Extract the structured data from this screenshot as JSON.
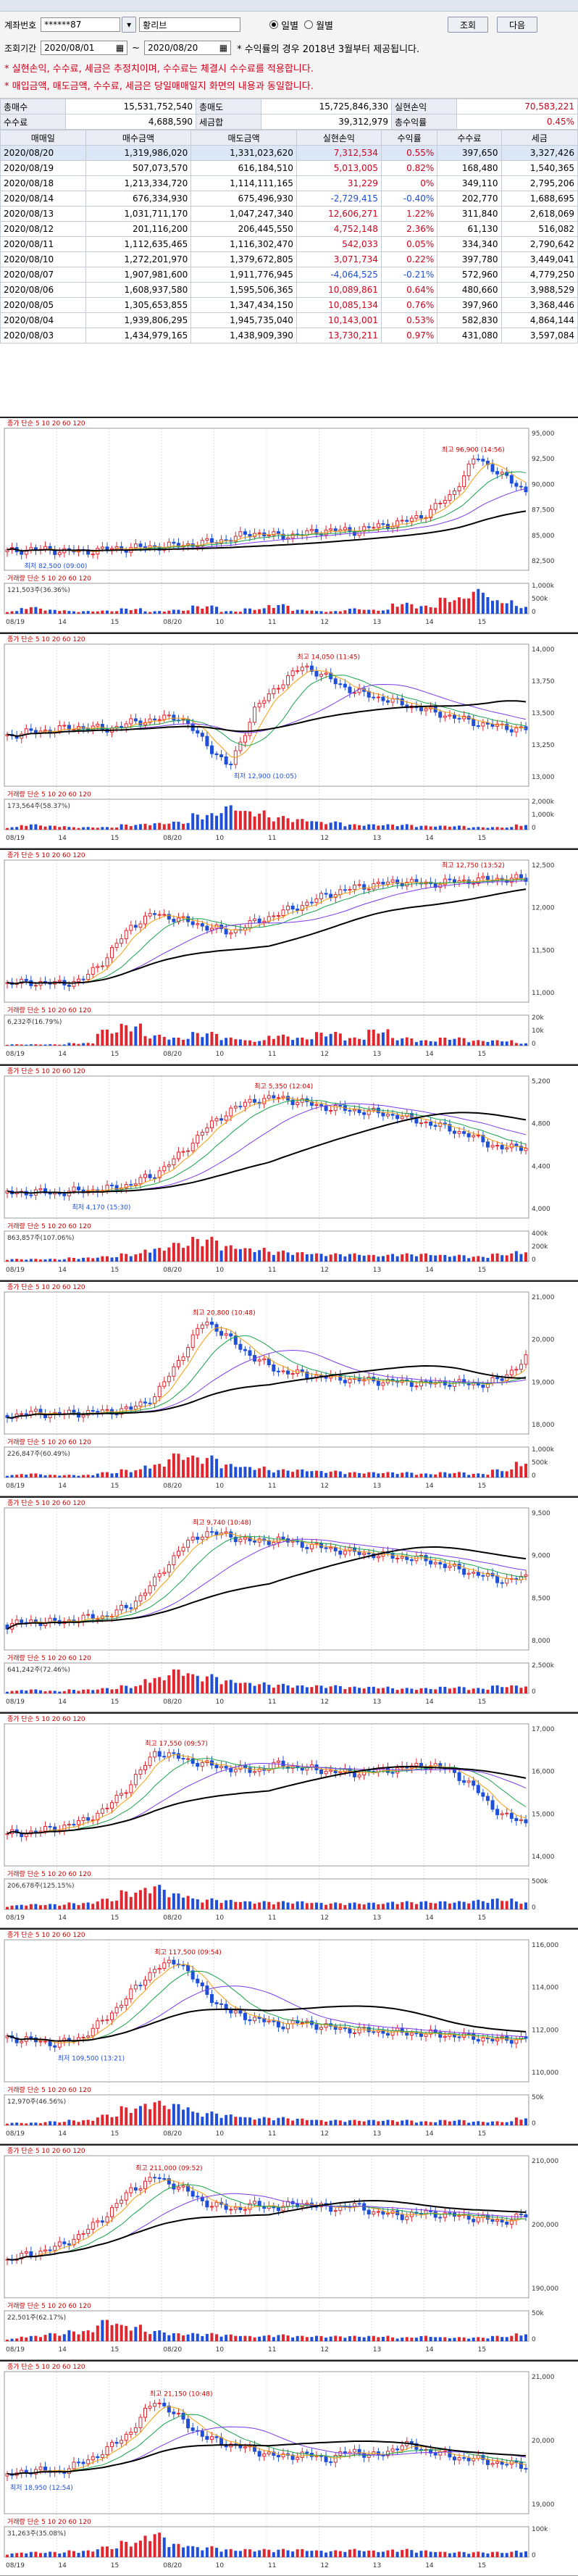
{
  "form": {
    "account_label": "계좌번호",
    "account_value": "******87",
    "account_name": "황리브",
    "period_label": "조회기간",
    "date_from": "2020/08/01",
    "date_to": "2020/08/20",
    "period_note": "* 수익률의 경우 2018년 3월부터 제공됩니다.",
    "radio_daily": "일별",
    "radio_monthly": "월별",
    "search_button": "조회",
    "next_button": "다음",
    "notice1": "* 실현손익, 수수료, 세금은 추정치이며, 수수료는 체결시 수수료를 적용합니다.",
    "notice2": "* 매입금액, 매도금액, 수수료, 세금은 당일매매일지 화면의 내용과 동일합니다."
  },
  "summary": {
    "total_buy_label": "총매수",
    "total_buy": "15,531,752,540",
    "total_sell_label": "총매도",
    "total_sell": "15,725,846,330",
    "realized_label": "실현손익",
    "realized": "70,583,221",
    "fee_label": "수수료",
    "fee": "4,688,590",
    "tax_label": "세금합",
    "tax": "39,312,979",
    "rate_label": "총수익률",
    "rate": "0.45%"
  },
  "table": {
    "headers": [
      "매매일",
      "매수금액",
      "매도금액",
      "실현손익",
      "수익률",
      "수수료",
      "세금"
    ],
    "rows": [
      [
        "2020/08/20",
        "1,319,986,020",
        "1,331,023,620",
        "7,312,534",
        "0.55%",
        "397,650",
        "3,327,426",
        "r"
      ],
      [
        "2020/08/19",
        "507,073,570",
        "616,184,510",
        "5,013,005",
        "0.82%",
        "168,480",
        "1,540,365",
        "r"
      ],
      [
        "2020/08/18",
        "1,213,334,720",
        "1,114,111,165",
        "31,229",
        "0%",
        "349,110",
        "2,795,206",
        "r"
      ],
      [
        "2020/08/14",
        "676,334,930",
        "675,496,930",
        "-2,729,415",
        "-0.40%",
        "202,770",
        "1,688,695",
        "b"
      ],
      [
        "2020/08/13",
        "1,031,711,170",
        "1,047,247,340",
        "12,606,271",
        "1.22%",
        "311,840",
        "2,618,069",
        "r"
      ],
      [
        "2020/08/12",
        "201,116,200",
        "206,445,550",
        "4,752,148",
        "2.36%",
        "61,130",
        "516,082",
        "r"
      ],
      [
        "2020/08/11",
        "1,112,635,465",
        "1,116,302,470",
        "542,033",
        "0.05%",
        "334,340",
        "2,790,642",
        "r"
      ],
      [
        "2020/08/10",
        "1,272,201,970",
        "1,379,672,805",
        "3,071,734",
        "0.22%",
        "397,780",
        "3,449,041",
        "r"
      ],
      [
        "2020/08/07",
        "1,907,981,600",
        "1,911,776,945",
        "-4,064,525",
        "-0.21%",
        "572,960",
        "4,779,250",
        "b"
      ],
      [
        "2020/08/06",
        "1,608,937,580",
        "1,595,506,365",
        "10,089,861",
        "0.64%",
        "480,660",
        "3,988,529",
        "r"
      ],
      [
        "2020/08/05",
        "1,305,653,855",
        "1,347,434,150",
        "10,085,134",
        "0.76%",
        "397,960",
        "3,368,446",
        "r"
      ],
      [
        "2020/08/04",
        "1,939,806,295",
        "1,945,735,040",
        "10,143,001",
        "0.53%",
        "582,830",
        "4,864,144",
        "r"
      ],
      [
        "2020/08/03",
        "1,434,979,165",
        "1,438,909,390",
        "13,730,211",
        "0.97%",
        "431,080",
        "3,597,084",
        "r"
      ]
    ]
  },
  "charts": [
    {
      "name": "종목1",
      "caption": "종가 단순 5 10 20 60 120",
      "high": "최고 96,900 (14:56)",
      "low": "최저 82,500 (09:00)",
      "vol_caption": "거래량 단순 5 10 20 60 120",
      "vol_note": "121,503주(36.36%)",
      "times": [
        "08/19",
        "14",
        "15",
        "08/20",
        "10",
        "11",
        "12",
        "13",
        "14",
        "15"
      ],
      "axis": [
        "95,000",
        "92,500",
        "90,000",
        "87,500",
        "85,000",
        "82,500"
      ],
      "vol_axis": [
        "1,000k",
        "500k",
        "0"
      ],
      "profile": [
        0.1,
        0.12,
        0.11,
        0.1,
        0.12,
        0.13,
        0.14,
        0.15,
        0.17,
        0.2,
        0.25,
        0.22,
        0.24,
        0.27,
        0.26,
        0.3,
        0.33,
        0.4,
        0.55,
        0.85,
        0.7,
        0.58
      ],
      "vol": [
        0.1,
        0.25,
        0.15,
        0.1,
        0.12,
        0.2,
        0.1,
        0.15,
        0.3,
        0.1,
        0.2,
        0.35,
        0.15,
        0.1,
        0.2,
        0.15,
        0.4,
        0.3,
        0.6,
        0.9,
        0.5,
        0.3
      ]
    },
    {
      "name": "종목2",
      "caption": "종가 단순 5 10 20 60 120",
      "high": "최고 14,050 (11:45)",
      "low": "최저 12,900 (10:05)",
      "vol_caption": "거래량 단순 5 10 20 60 120",
      "vol_note": "173,564주(58.37%)",
      "times": [
        "08/19",
        "14",
        "15",
        "08/20",
        "10",
        "11",
        "12",
        "13",
        "14",
        "15"
      ],
      "axis": [
        "14,000",
        "13,750",
        "13,500",
        "13,250",
        "13,000"
      ],
      "vol_axis": [
        "2,000k",
        "1,000k",
        "0"
      ],
      "profile": [
        0.35,
        0.38,
        0.4,
        0.42,
        0.4,
        0.45,
        0.48,
        0.5,
        0.3,
        0.1,
        0.55,
        0.75,
        0.9,
        0.8,
        0.7,
        0.65,
        0.6,
        0.55,
        0.5,
        0.45,
        0.42,
        0.4
      ],
      "vol": [
        0.1,
        0.2,
        0.15,
        0.1,
        0.1,
        0.2,
        0.25,
        0.3,
        0.6,
        0.9,
        0.7,
        0.5,
        0.4,
        0.3,
        0.2,
        0.2,
        0.2,
        0.15,
        0.15,
        0.1,
        0.1,
        0.2
      ]
    },
    {
      "name": "종목3",
      "caption": "종가 단순 5 10 20 60 120",
      "high": "최고 12,750 (13:52)",
      "low": "",
      "vol_caption": "거래량 단순 5 10 20 60 120",
      "vol_note": "6,232주(16.79%)",
      "times": [
        "08/19",
        "14",
        "15",
        "08/20",
        "10",
        "11",
        "12",
        "13",
        "14",
        "15"
      ],
      "axis": [
        "12,500",
        "12,000",
        "11,500",
        "11,000"
      ],
      "vol_axis": [
        "20k",
        "10k",
        "0"
      ],
      "profile": [
        0.1,
        0.11,
        0.1,
        0.12,
        0.3,
        0.55,
        0.65,
        0.6,
        0.55,
        0.5,
        0.58,
        0.65,
        0.72,
        0.8,
        0.85,
        0.88,
        0.9,
        0.88,
        0.9,
        0.91,
        0.92,
        0.92
      ],
      "vol": [
        0.05,
        0.05,
        0.05,
        0.1,
        0.6,
        0.8,
        0.4,
        0.3,
        0.5,
        0.3,
        0.2,
        0.4,
        0.3,
        0.5,
        0.3,
        0.6,
        0.3,
        0.2,
        0.3,
        0.2,
        0.2,
        0.1
      ]
    },
    {
      "name": "종목4",
      "caption": "종가 단순 5 10 20 60 120",
      "high": "최고 5,350 (12:04)",
      "low": "최저 4,170 (15:30)",
      "vol_caption": "거래량 단순 5 10 20 60 120",
      "vol_note": "863,857주(107.06%)",
      "times": [
        "08/19",
        "14",
        "15",
        "08/20",
        "10",
        "11",
        "12",
        "13",
        "14",
        "15"
      ],
      "axis": [
        "5,200",
        "4,800",
        "4,400",
        "4,000"
      ],
      "vol_axis": [
        "400k",
        "200k",
        "0"
      ],
      "profile": [
        0.15,
        0.16,
        0.15,
        0.17,
        0.18,
        0.22,
        0.3,
        0.45,
        0.65,
        0.8,
        0.88,
        0.9,
        0.86,
        0.82,
        0.8,
        0.78,
        0.75,
        0.7,
        0.65,
        0.58,
        0.5,
        0.52
      ],
      "vol": [
        0.1,
        0.1,
        0.1,
        0.15,
        0.2,
        0.3,
        0.5,
        0.7,
        0.9,
        0.6,
        0.5,
        0.4,
        0.35,
        0.3,
        0.3,
        0.25,
        0.3,
        0.3,
        0.25,
        0.2,
        0.3,
        0.4
      ]
    },
    {
      "name": "종목5",
      "caption": "종가 단순 5 10 20 60 120",
      "high": "최고 20,800 (10:48)",
      "low": "",
      "vol_caption": "거래량 단순 5 10 20 60 120",
      "vol_note": "226,847주(60.49%)",
      "times": [
        "08/19",
        "14",
        "15",
        "08/20",
        "10",
        "11",
        "12",
        "13",
        "14",
        "15"
      ],
      "axis": [
        "21,000",
        "20,000",
        "19,000",
        "18,000"
      ],
      "vol_axis": [
        "1,000k",
        "500k",
        "0"
      ],
      "profile": [
        0.1,
        0.12,
        0.11,
        0.12,
        0.13,
        0.15,
        0.25,
        0.55,
        0.85,
        0.7,
        0.55,
        0.45,
        0.42,
        0.4,
        0.38,
        0.37,
        0.36,
        0.35,
        0.36,
        0.34,
        0.38,
        0.55
      ],
      "vol": [
        0.1,
        0.15,
        0.1,
        0.1,
        0.2,
        0.3,
        0.5,
        0.9,
        0.8,
        0.5,
        0.4,
        0.3,
        0.3,
        0.25,
        0.2,
        0.2,
        0.2,
        0.15,
        0.2,
        0.15,
        0.3,
        0.6
      ]
    },
    {
      "name": "종목6",
      "caption": "종가 단순 5 10 20 60 120",
      "high": "최고 9,740 (10:48)",
      "low": "",
      "vol_caption": "거래량 단순 5 10 20 60 120",
      "vol_note": "641,242주(72.46%)",
      "times": [
        "08/19",
        "14",
        "15",
        "08/20",
        "10",
        "11",
        "12",
        "13",
        "14",
        "15"
      ],
      "axis": [
        "9,500",
        "9,000",
        "8,500",
        "8,000"
      ],
      "vol_axis": [
        "2,500k",
        "0"
      ],
      "profile": [
        0.15,
        0.18,
        0.17,
        0.2,
        0.22,
        0.3,
        0.5,
        0.75,
        0.88,
        0.85,
        0.8,
        0.82,
        0.78,
        0.75,
        0.72,
        0.7,
        0.68,
        0.66,
        0.6,
        0.55,
        0.5,
        0.52
      ],
      "vol": [
        0.1,
        0.15,
        0.1,
        0.15,
        0.2,
        0.3,
        0.6,
        0.9,
        0.7,
        0.5,
        0.4,
        0.35,
        0.3,
        0.3,
        0.25,
        0.25,
        0.2,
        0.2,
        0.25,
        0.2,
        0.3,
        0.3
      ]
    },
    {
      "name": "종목7",
      "caption": "종가 단순 5 10 20 60 120",
      "high": "최고 17,550 (09:57)",
      "low": "",
      "vol_caption": "거래량 단순 5 10 20 60 120",
      "vol_note": "206,678주(125.15%)",
      "times": [
        "08/19",
        "14",
        "15",
        "08/20",
        "10",
        "11",
        "12",
        "13",
        "14",
        "15"
      ],
      "axis": [
        "17,000",
        "16,000",
        "15,000",
        "14,000"
      ],
      "vol_axis": [
        "500k",
        "0"
      ],
      "profile": [
        0.2,
        0.22,
        0.25,
        0.3,
        0.4,
        0.6,
        0.85,
        0.8,
        0.75,
        0.72,
        0.7,
        0.75,
        0.72,
        0.7,
        0.68,
        0.7,
        0.72,
        0.75,
        0.7,
        0.55,
        0.35,
        0.3
      ],
      "vol": [
        0.15,
        0.2,
        0.2,
        0.25,
        0.4,
        0.7,
        0.9,
        0.6,
        0.4,
        0.35,
        0.3,
        0.3,
        0.3,
        0.25,
        0.25,
        0.25,
        0.3,
        0.3,
        0.3,
        0.35,
        0.4,
        0.3
      ]
    },
    {
      "name": "종목8",
      "caption": "종가 단순 5 10 20 60 120",
      "high": "최고 117,500 (09:54)",
      "low": "최저 109,500 (13:21)",
      "vol_caption": "거래량 단순 5 10 20 60 120",
      "vol_note": "12,970주(46.56%)",
      "times": [
        "08/19",
        "14",
        "15",
        "08/20",
        "10",
        "11",
        "12",
        "13",
        "14",
        "15"
      ],
      "axis": [
        "116,000",
        "114,000",
        "112,000",
        "110,000"
      ],
      "vol_axis": [
        "50k",
        "0"
      ],
      "profile": [
        0.3,
        0.28,
        0.25,
        0.3,
        0.45,
        0.65,
        0.85,
        0.9,
        0.65,
        0.5,
        0.45,
        0.4,
        0.42,
        0.38,
        0.36,
        0.35,
        0.34,
        0.33,
        0.32,
        0.3,
        0.28,
        0.3
      ],
      "vol": [
        0.1,
        0.1,
        0.15,
        0.2,
        0.4,
        0.7,
        0.9,
        0.8,
        0.5,
        0.4,
        0.3,
        0.3,
        0.25,
        0.2,
        0.2,
        0.2,
        0.2,
        0.15,
        0.2,
        0.15,
        0.15,
        0.3
      ]
    },
    {
      "name": "종목9",
      "caption": "종가 단순 5 10 20 60 120",
      "high": "최고 211,000 (09:52)",
      "low": "",
      "vol_caption": "거래량 단순 5 10 20 60 120",
      "vol_note": "22,501주(62.17%)",
      "times": [
        "08/19",
        "14",
        "15",
        "08/20",
        "10",
        "11",
        "12",
        "13",
        "14",
        "15"
      ],
      "axis": [
        "210,000",
        "200,000",
        "190,000"
      ],
      "vol_axis": [
        "50k",
        "0"
      ],
      "profile": [
        0.25,
        0.3,
        0.35,
        0.45,
        0.6,
        0.8,
        0.9,
        0.82,
        0.7,
        0.65,
        0.68,
        0.66,
        0.7,
        0.65,
        0.68,
        0.62,
        0.6,
        0.62,
        0.6,
        0.58,
        0.55,
        0.6
      ],
      "vol": [
        0.1,
        0.2,
        0.3,
        0.4,
        0.8,
        0.6,
        0.4,
        0.3,
        0.3,
        0.25,
        0.2,
        0.25,
        0.2,
        0.2,
        0.2,
        0.2,
        0.15,
        0.2,
        0.15,
        0.15,
        0.2,
        0.3
      ]
    },
    {
      "name": "종목10",
      "caption": "종가 단순 5 10 20 60 120",
      "high": "최고 21,150 (10:48)",
      "low": "최저 18,950 (12:54)",
      "vol_caption": "거래량 단순 5 10 20 60 120",
      "vol_note": "31,263주(35.08%)",
      "times": [
        "08/19",
        "14",
        "15",
        "08/20",
        "10",
        "11",
        "12",
        "13",
        "14",
        "15"
      ],
      "axis": [
        "21,000",
        "20,000",
        "19,000"
      ],
      "vol_axis": [
        "100k",
        "0"
      ],
      "profile": [
        0.25,
        0.3,
        0.28,
        0.35,
        0.45,
        0.6,
        0.85,
        0.7,
        0.55,
        0.5,
        0.45,
        0.4,
        0.42,
        0.38,
        0.45,
        0.4,
        0.5,
        0.45,
        0.4,
        0.38,
        0.35,
        0.33
      ],
      "vol": [
        0.15,
        0.2,
        0.2,
        0.25,
        0.4,
        0.6,
        0.9,
        0.5,
        0.4,
        0.3,
        0.3,
        0.3,
        0.3,
        0.25,
        0.3,
        0.25,
        0.3,
        0.25,
        0.2,
        0.2,
        0.2,
        0.25
      ]
    }
  ]
}
